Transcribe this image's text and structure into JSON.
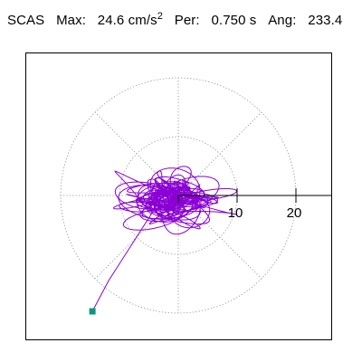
{
  "header": {
    "station": "SCAS",
    "max_label": "Max:",
    "max_value": "24.6 cm/s",
    "max_exp": "2",
    "period_label": "Per:",
    "period_value": "0.750 s",
    "angle_label": "Ang:",
    "angle_value": "233.4"
  },
  "colors": {
    "trace": "#8a00d4",
    "marker": "#0a9a7a",
    "grid": "#888888",
    "axis": "#000000"
  },
  "chart_data": {
    "type": "polar-particle-motion",
    "units": "cm/s2",
    "max": 24.6,
    "period_s": 0.75,
    "angle_deg": 233.4,
    "radial_ticks": [
      10,
      20
    ],
    "tick_labels": [
      "10",
      "20"
    ],
    "grid_circles": [
      10,
      20
    ],
    "grid_spokes_deg": [
      0,
      45,
      90,
      135,
      180,
      225,
      270,
      315
    ],
    "endpoint": {
      "x": -14.6,
      "y": -19.7
    },
    "trace_seed": 7
  }
}
